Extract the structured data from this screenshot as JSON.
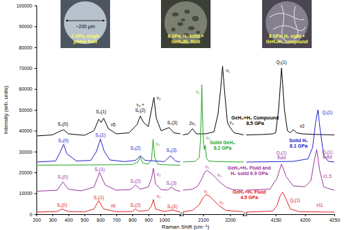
{
  "chart_data": {
    "type": "line",
    "x_axis_label": "Raman Shift (cm⁻¹)",
    "y_axis_label": "Intensity (arb. units)",
    "ylim": [
      0,
      100000
    ],
    "yticks": [
      0,
      10000,
      20000,
      30000,
      40000,
      50000,
      60000,
      70000,
      80000,
      90000,
      100000
    ],
    "panels": [
      {
        "xlim": [
          200,
          1100
        ],
        "xticks": [
          200,
          300,
          400,
          500,
          600,
          700,
          800,
          900,
          1000
        ]
      },
      {
        "xlim": [
          2025,
          2250
        ],
        "xticks": [
          2100,
          2200
        ]
      },
      {
        "xlim": [
          4100,
          4250
        ],
        "xticks": [
          4150,
          4200,
          4250
        ]
      }
    ],
    "series": [
      {
        "name": "GeH₄+H₂ Compound\n8.5 GPa",
        "color": "#000000",
        "label_at": {
          "panel": 2,
          "x": 4115,
          "y": 45500
        },
        "segments": [
          {
            "panel": 0,
            "x": [
              200,
              300,
              340,
              370,
              400,
              500,
              560,
              590,
              605,
              620,
              650,
              700,
              780,
              830,
              850,
              870,
              900,
              920,
              935,
              950,
              980,
              1030,
              1060,
              1100
            ],
            "values": [
              37500,
              38000,
              39500,
              40500,
              38500,
              37800,
              40000,
              45500,
              44000,
              46000,
              41000,
              38500,
              39000,
              43000,
              47000,
              44000,
              42000,
              50000,
              56000,
              46000,
              40000,
              41500,
              39000,
              38500
            ]
          },
          {
            "panel": 1,
            "x": [
              2025,
              2045,
              2060,
              2075,
              2110,
              2140,
              2155,
              2165,
              2172,
              2180,
              2190,
              2200,
              2215,
              2250
            ],
            "values": [
              38000,
              38500,
              41000,
              38500,
              38500,
              39500,
              48000,
              60000,
              71000,
              58000,
              44000,
              41500,
              39000,
              38000
            ]
          },
          {
            "panel": 2,
            "x": [
              4100,
              4130,
              4145,
              4150,
              4155,
              4160,
              4165,
              4170,
              4175,
              4180,
              4186,
              4195,
              4220,
              4250
            ],
            "values": [
              38000,
              38200,
              38500,
              39000,
              50000,
              70000,
              50000,
              40000,
              39000,
              40500,
              39000,
              38500,
              38200,
              38000
            ]
          }
        ]
      },
      {
        "name": "Solid GeH₄\n8.2 GPa",
        "color": "#22a322",
        "label_at": {
          "panel": 1,
          "x": 2172,
          "y": 33500
        },
        "segments": [
          {
            "panel": 0,
            "x": [
              200,
              500,
              800,
              835,
              850,
              865,
              900,
              920,
              930,
              940,
              960,
              1000,
              1100
            ],
            "values": [
              23500,
              23600,
              23800,
              25000,
              27500,
              24500,
              24000,
              26000,
              36000,
              27000,
              24000,
              23700,
              23500
            ]
          },
          {
            "panel": 1,
            "x": [
              2025,
              2070,
              2085,
              2090,
              2095,
              2100,
              2104,
              2108,
              2112,
              2120,
              2150,
              2250
            ],
            "values": [
              25000,
              25300,
              27000,
              35000,
              62000,
              36000,
              31000,
              33000,
              27000,
              25500,
              25200,
              25000
            ]
          }
        ]
      },
      {
        "name": "Solid H₂\n8.1 GPa",
        "color": "#2020cc",
        "label_at": {
          "panel": 2,
          "x": 4189,
          "y": 34500
        },
        "segments": [
          {
            "panel": 0,
            "x": [
              200,
              320,
              350,
              370,
              390,
              450,
              540,
              575,
              600,
              625,
              660,
              750,
              820,
              850,
              880,
              1000,
              1040,
              1070,
              1100
            ],
            "values": [
              25000,
              25500,
              30000,
              33500,
              29000,
              25500,
              25800,
              30000,
              36000,
              30000,
              26000,
              25200,
              25800,
              28000,
              25800,
              25200,
              28000,
              25500,
              25000
            ]
          },
          {
            "panel": 2,
            "x": [
              4100,
              4180,
              4205,
              4213,
              4218,
              4222,
              4226,
              4232,
              4240,
              4250
            ],
            "values": [
              25000,
              25300,
              26500,
              32000,
              44000,
              50000,
              40000,
              28000,
              25300,
              25000
            ]
          }
        ]
      },
      {
        "name": "GeH₄+H₂ Fluid and\nH₂ solid 6.9 GPa",
        "color": "#993399",
        "label_at": {
          "panel": 2,
          "x": 4105,
          "y": 21500
        },
        "segments": [
          {
            "panel": 0,
            "x": [
              200,
              330,
              365,
              400,
              480,
              560,
              595,
              630,
              700,
              790,
              820,
              850,
              900,
              920,
              932,
              945,
              980,
              1020,
              1045,
              1070,
              1100
            ],
            "values": [
              11000,
              11500,
              15500,
              12000,
              11200,
              13000,
              20000,
              14000,
              11500,
              11800,
              14000,
              12000,
              13000,
              17000,
              22000,
              14500,
              11800,
              11500,
              13000,
              11500,
              11000
            ]
          },
          {
            "panel": 1,
            "x": [
              2025,
              2060,
              2080,
              2095,
              2105,
              2115,
              2130,
              2150,
              2165,
              2185,
              2210,
              2250
            ],
            "values": [
              11500,
              12000,
              13500,
              17000,
              20000,
              21000,
              19500,
              17000,
              15000,
              13000,
              11800,
              11500
            ]
          },
          {
            "panel": 2,
            "x": [
              4100,
              4140,
              4152,
              4160,
              4168,
              4180,
              4200,
              4210,
              4216,
              4220,
              4225,
              4232,
              4250
            ],
            "values": [
              11500,
              12000,
              17000,
              24000,
              18000,
              13500,
              13200,
              16000,
              26000,
              31000,
              21000,
              13000,
              11500
            ]
          }
        ]
      },
      {
        "name": "GeH₄+H₂ Fluid\n4.5 GPa",
        "color": "#e02020",
        "label_at": {
          "panel": 2,
          "x": 4105,
          "y": 10000
        },
        "segments": [
          {
            "panel": 0,
            "x": [
              200,
              330,
              360,
              400,
              500,
              560,
              590,
              620,
              700,
              800,
              820,
              840,
              900,
              920,
              932,
              945,
              1000,
              1050,
              1100
            ],
            "values": [
              1000,
              1300,
              2500,
              1300,
              1100,
              2500,
              6500,
              2500,
              1200,
              1300,
              2500,
              1400,
              1800,
              4000,
              7000,
              2500,
              1300,
              2000,
              1000
            ]
          },
          {
            "panel": 1,
            "x": [
              2025,
              2060,
              2085,
              2100,
              2110,
              2125,
              2140,
              2160,
              2185,
              2250
            ],
            "values": [
              1200,
              1800,
              4500,
              8000,
              9500,
              8500,
              6500,
              4000,
              1800,
              1200
            ]
          },
          {
            "panel": 2,
            "x": [
              4100,
              4145,
              4152,
              4158,
              4162,
              4168,
              4175,
              4190,
              4250
            ],
            "values": [
              1000,
              1500,
              4000,
              9000,
              10500,
              7000,
              2500,
              1200,
              1000
            ]
          }
        ]
      }
    ],
    "annotations": [
      {
        "text": "S₀(0)",
        "color": "#000000",
        "panel": 0,
        "x": 365,
        "y": 42500
      },
      {
        "text": "S₀(1)",
        "color": "#000000",
        "panel": 0,
        "x": 605,
        "y": 48500
      },
      {
        "text": "x5",
        "color": "#000000",
        "panel": 0,
        "x": 680,
        "y": 42000
      },
      {
        "text": "ν₄ +",
        "color": "#000000",
        "panel": 0,
        "x": 850,
        "y": 51800
      },
      {
        "text": "S₀(2)",
        "color": "#000000",
        "panel": 0,
        "x": 850,
        "y": 49000
      },
      {
        "text": "ν₂",
        "color": "#000000",
        "panel": 0,
        "x": 965,
        "y": 55000
      },
      {
        "text": "S₀(3)",
        "color": "#000000",
        "panel": 0,
        "x": 1050,
        "y": 43000
      },
      {
        "text": "2ν₂",
        "color": "#000000",
        "panel": 1,
        "x": 2060,
        "y": 42800
      },
      {
        "text": "ν₁",
        "color": "#000000",
        "panel": 1,
        "x": 2192,
        "y": 68000
      },
      {
        "text": "ν₃",
        "color": "#000000",
        "panel": 1,
        "x": 2205,
        "y": 43000
      },
      {
        "text": "Q₁(1)",
        "color": "#000000",
        "panel": 2,
        "x": 4160,
        "y": 72000
      },
      {
        "text": "x2",
        "color": "#000000",
        "panel": 2,
        "x": 4195,
        "y": 41500
      },
      {
        "text": "ν₂",
        "color": "#22a322",
        "panel": 0,
        "x": 960,
        "y": 33000
      },
      {
        "text": "ν₁",
        "color": "#22a322",
        "panel": 1,
        "x": 2080,
        "y": 58000
      },
      {
        "text": "ν₃",
        "color": "#22a322",
        "panel": 1,
        "x": 2118,
        "y": 35800
      },
      {
        "text": "S₀(0)",
        "color": "#2020cc",
        "panel": 0,
        "x": 368,
        "y": 34700
      },
      {
        "text": "S₀(1)",
        "color": "#2020cc",
        "panel": 0,
        "x": 600,
        "y": 37200
      },
      {
        "text": "S₀(2)",
        "color": "#2020cc",
        "panel": 0,
        "x": 820,
        "y": 31000
      },
      {
        "text": "S₀(3)",
        "color": "#2020cc",
        "panel": 0,
        "x": 1045,
        "y": 30000
      },
      {
        "text": "Q₁(1)",
        "color": "#2020cc",
        "panel": 2,
        "x": 4238,
        "y": 48000
      },
      {
        "text": "S₀(0)",
        "color": "#993399",
        "panel": 0,
        "x": 365,
        "y": 17000
      },
      {
        "text": "S₀(1)",
        "color": "#993399",
        "panel": 0,
        "x": 595,
        "y": 20800
      },
      {
        "text": "S₀(2)",
        "color": "#993399",
        "panel": 0,
        "x": 820,
        "y": 15200
      },
      {
        "text": "ν₂",
        "color": "#993399",
        "panel": 0,
        "x": 965,
        "y": 18500
      },
      {
        "text": "S₀(3)",
        "color": "#993399",
        "panel": 0,
        "x": 1045,
        "y": 14300
      },
      {
        "text": "ν₁",
        "color": "#993399",
        "panel": 1,
        "x": 2115,
        "y": 22000
      },
      {
        "text": "ν₃",
        "color": "#993399",
        "panel": 1,
        "x": 2160,
        "y": 18000
      },
      {
        "text": "Q₁(1)\nfluid",
        "color": "#993399",
        "panel": 2,
        "x": 4160,
        "y": 28500
      },
      {
        "text": "Q₁(1)\nsolid",
        "color": "#993399",
        "panel": 2,
        "x": 4238,
        "y": 29000
      },
      {
        "text": "x1.5",
        "color": "#993399",
        "panel": 2,
        "x": 4238,
        "y": 17500
      },
      {
        "text": "S₀(0)",
        "color": "#e02020",
        "panel": 0,
        "x": 360,
        "y": 3600
      },
      {
        "text": "S₀(1)",
        "color": "#e02020",
        "panel": 0,
        "x": 590,
        "y": 7400
      },
      {
        "text": "x6",
        "color": "#e02020",
        "panel": 0,
        "x": 680,
        "y": 3300
      },
      {
        "text": "S₀(2)",
        "color": "#e02020",
        "panel": 0,
        "x": 820,
        "y": 3600
      },
      {
        "text": "ν₂",
        "color": "#e02020",
        "panel": 0,
        "x": 965,
        "y": 7800
      },
      {
        "text": "S₀(3)",
        "color": "#e02020",
        "panel": 0,
        "x": 1050,
        "y": 3000
      },
      {
        "text": "ν₁",
        "color": "#e02020",
        "panel": 1,
        "x": 2110,
        "y": 10300
      },
      {
        "text": "ν₃",
        "color": "#e02020",
        "panel": 1,
        "x": 2168,
        "y": 5000
      },
      {
        "text": "Q₁(1)",
        "color": "#e02020",
        "panel": 2,
        "x": 4183,
        "y": 6000
      },
      {
        "text": "x11",
        "color": "#e02020",
        "panel": 2,
        "x": 4225,
        "y": 3500
      }
    ]
  },
  "photos": {
    "scale_label": "~200 μm",
    "captions": [
      "2 GPa, single\nphase fluid",
      "6 GPa, H₂ solid +\nGeH₄/H₂ fluid",
      "8 GPa, H₂ solid +\nGeH₄/H₂ compound"
    ]
  }
}
